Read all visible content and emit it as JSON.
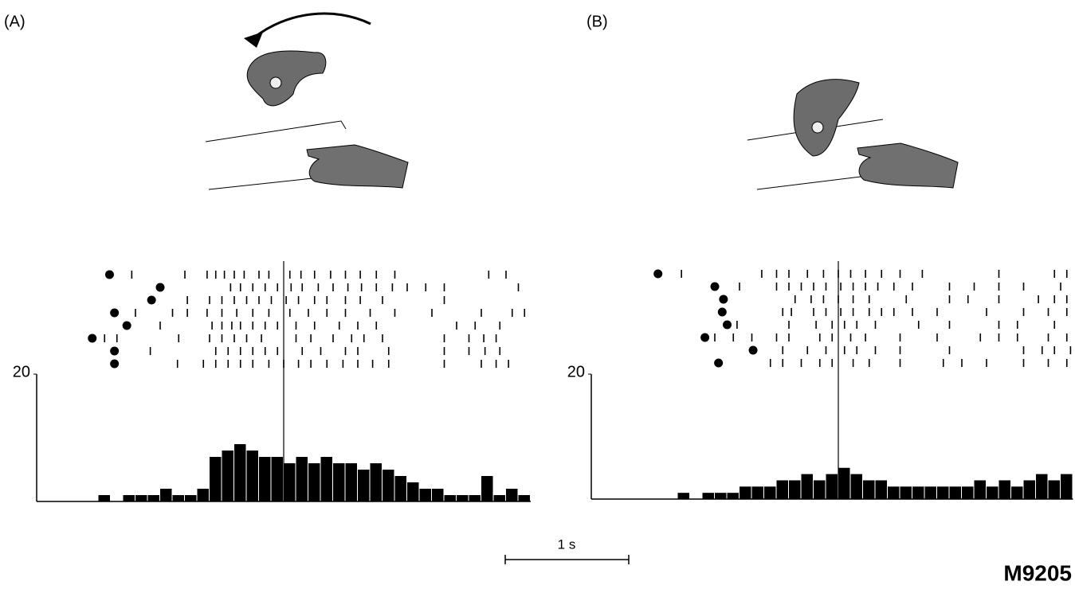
{
  "chart_data": [
    {
      "type": "histogram",
      "title": "(A)",
      "trials": [
        {
          "marker": -1.41,
          "spikes": [
            -1.23,
            -0.8,
            -0.62,
            -0.55,
            -0.48,
            -0.4,
            -0.32,
            -0.2,
            -0.12,
            0.05,
            0.14,
            0.25,
            0.38,
            0.5,
            0.62,
            0.75,
            0.9,
            1.66,
            1.8
          ]
        },
        {
          "marker": -1.0,
          "spikes": [
            -0.43,
            -0.35,
            -0.25,
            -0.15,
            -0.05,
            0.06,
            0.15,
            0.28,
            0.4,
            0.52,
            0.63,
            0.75,
            0.88,
            1.0,
            1.15,
            1.3,
            1.9
          ]
        },
        {
          "marker": -1.07,
          "spikes": [
            -0.78,
            -0.6,
            -0.5,
            -0.4,
            -0.3,
            -0.2,
            -0.1,
            0.02,
            0.12,
            0.25,
            0.35,
            0.5,
            0.62,
            0.8,
            1.3
          ]
        },
        {
          "marker": -1.37,
          "spikes": [
            -1.2,
            -0.9,
            -0.78,
            -0.62,
            -0.5,
            -0.38,
            -0.25,
            -0.12,
            0.05,
            0.2,
            0.35,
            0.5,
            0.7,
            0.9,
            1.2,
            1.6,
            1.85,
            1.95
          ]
        },
        {
          "marker": -1.27,
          "spikes": [
            -1.0,
            -0.58,
            -0.5,
            -0.42,
            -0.35,
            -0.25,
            -0.15,
            -0.05,
            0.1,
            0.25,
            0.45,
            0.6,
            0.75,
            1.4,
            1.55,
            1.75
          ]
        },
        {
          "marker": -1.55,
          "spikes": [
            -1.45,
            -1.35,
            -0.85,
            -0.6,
            -0.5,
            -0.4,
            -0.3,
            -0.18,
            0.1,
            0.22,
            0.4,
            0.55,
            0.65,
            0.8,
            1.3,
            1.5,
            1.62,
            1.72
          ]
        },
        {
          "marker": -1.37,
          "spikes": [
            -1.08,
            -0.55,
            -0.45,
            -0.35,
            -0.25,
            -0.15,
            -0.05,
            0.15,
            0.3,
            0.5,
            0.6,
            0.85,
            1.3,
            1.5,
            1.63,
            1.75
          ]
        },
        {
          "marker": -1.37,
          "spikes": [
            -0.86,
            -0.65,
            -0.55,
            -0.45,
            -0.35,
            -0.25,
            -0.12,
            0.0,
            0.12,
            0.22,
            0.35,
            0.48,
            0.6,
            0.72,
            0.85,
            1.3,
            1.6,
            1.72,
            1.82
          ]
        }
      ],
      "event": 0,
      "bins": [
        -2,
        -1.9,
        -1.8,
        -1.7,
        -1.6,
        -1.5,
        -1.4,
        -1.3,
        -1.2,
        -1.1,
        -1,
        -0.9,
        -0.8,
        -0.7,
        -0.6,
        -0.5,
        -0.4,
        -0.3,
        -0.2,
        -0.1,
        0,
        0.1,
        0.2,
        0.3,
        0.4,
        0.5,
        0.6,
        0.7,
        0.8,
        0.9,
        1,
        1.1,
        1.2,
        1.3,
        1.4,
        1.5,
        1.6,
        1.7,
        1.8,
        1.9,
        2
      ],
      "counts": [
        0,
        0,
        0,
        0,
        0,
        1,
        0,
        1,
        1,
        1,
        2,
        1,
        1,
        2,
        7,
        8,
        9,
        8,
        7,
        7,
        6,
        7,
        6,
        7,
        6,
        6,
        5,
        6,
        5,
        4,
        3,
        2,
        2,
        1,
        1,
        1,
        4,
        1,
        2,
        1
      ],
      "xlim": [
        -2,
        2
      ],
      "ylim": [
        0,
        20
      ],
      "yticks": [
        20
      ]
    },
    {
      "type": "histogram",
      "title": "(B)",
      "trials": [
        {
          "marker": -1.46,
          "spikes": [
            -1.27,
            -0.62,
            -0.5,
            -0.4,
            -0.25,
            -0.12,
            0.0,
            0.1,
            0.22,
            0.35,
            0.5,
            0.68,
            1.3,
            1.75,
            1.85
          ]
        },
        {
          "marker": -1.0,
          "spikes": [
            -0.8,
            -0.5,
            -0.4,
            -0.3,
            -0.2,
            -0.1,
            0.02,
            0.12,
            0.22,
            0.32,
            0.45,
            0.6,
            0.9,
            1.1,
            1.3,
            1.5,
            1.8
          ]
        },
        {
          "marker": -0.93,
          "spikes": [
            -0.35,
            -0.22,
            -0.12,
            0.0,
            0.12,
            0.25,
            0.55,
            0.9,
            1.05,
            1.3,
            1.62,
            1.75,
            1.85
          ]
        },
        {
          "marker": -0.94,
          "spikes": [
            -0.45,
            -0.38,
            -0.2,
            -0.1,
            0.02,
            0.12,
            0.25,
            0.35,
            0.45,
            0.6,
            0.8,
            1.2,
            1.5,
            1.7,
            1.85
          ]
        },
        {
          "marker": -0.9,
          "spikes": [
            -0.82,
            -0.4,
            -0.18,
            -0.05,
            0.05,
            0.15,
            0.3,
            0.65,
            0.9,
            1.3,
            1.45,
            1.75
          ]
        },
        {
          "marker": -1.08,
          "spikes": [
            -1.0,
            -0.85,
            -0.7,
            -0.5,
            -0.4,
            -0.15,
            -0.05,
            0.1,
            0.22,
            0.5,
            0.8,
            1.15,
            1.3,
            1.45,
            1.7,
            1.85
          ]
        },
        {
          "marker": -0.69,
          "spikes": [
            -0.45,
            -0.25,
            -0.1,
            0.05,
            0.15,
            0.3,
            0.5,
            0.9,
            1.5,
            1.65,
            1.75,
            1.88
          ]
        },
        {
          "marker": -0.97,
          "spikes": [
            -0.55,
            -0.45,
            -0.3,
            -0.15,
            -0.05,
            0.12,
            0.25,
            0.5,
            0.85,
            1.0,
            1.2,
            1.5,
            1.7,
            1.85
          ]
        }
      ],
      "event": 0,
      "bins": [
        -2,
        -1.9,
        -1.8,
        -1.7,
        -1.6,
        -1.5,
        -1.4,
        -1.3,
        -1.2,
        -1.1,
        -1,
        -0.9,
        -0.8,
        -0.7,
        -0.6,
        -0.5,
        -0.4,
        -0.3,
        -0.2,
        -0.1,
        0,
        0.1,
        0.2,
        0.3,
        0.4,
        0.5,
        0.6,
        0.7,
        0.8,
        0.9,
        1,
        1.1,
        1.2,
        1.3,
        1.4,
        1.5,
        1.6,
        1.7,
        1.8,
        1.9
      ],
      "counts": [
        0,
        0,
        0,
        0,
        0,
        0,
        0,
        1,
        0,
        1,
        1,
        1,
        2,
        2,
        2,
        3,
        3,
        4,
        3,
        4,
        5,
        4,
        3,
        3,
        2,
        2,
        2,
        2,
        2,
        2,
        2,
        3,
        2,
        3,
        2,
        3,
        4,
        3,
        4
      ],
      "xlim": [
        -2,
        1.9
      ],
      "ylim": [
        0,
        20
      ],
      "yticks": [
        20
      ]
    }
  ],
  "scale_bar": {
    "length": 1,
    "label": "1 s"
  },
  "figure_id": "M9205"
}
